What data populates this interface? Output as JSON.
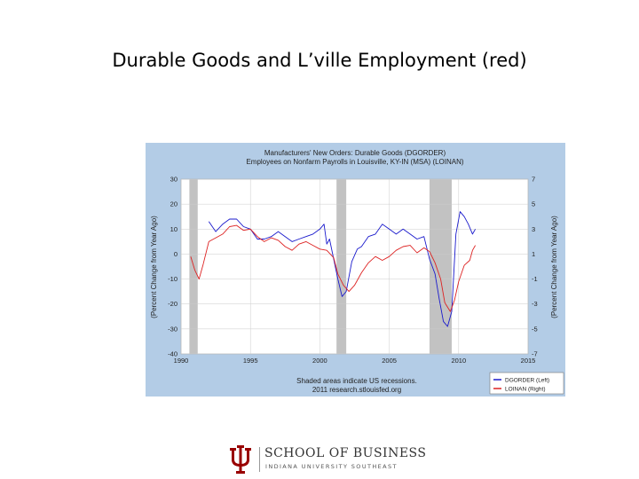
{
  "slide": {
    "title": "Durable Goods and L’ville Employment (red)"
  },
  "logo": {
    "line1": "SCHOOL OF BUSINESS",
    "line2": "INDIANA UNIVERSITY SOUTHEAST",
    "color": "#990000"
  },
  "chart_data": {
    "type": "line",
    "title": "Manufacturers' New Orders: Durable Goods (DGORDER)",
    "subtitle": "Employees on Nonfarm Payrolls in Louisville, KY-IN (MSA) (LOINAN)",
    "xlim": [
      1990,
      2015
    ],
    "x_ticks": [
      "1990",
      "1995",
      "2000",
      "2005",
      "2010",
      "2015"
    ],
    "ylabel": "(Percent Change from Year Ago)",
    "ylim": [
      -40,
      30
    ],
    "y_ticks": [
      "-40",
      "-30",
      "-20",
      "-10",
      "0",
      "10",
      "20",
      "30"
    ],
    "y2label": "(Percent Change from Year Ago)",
    "y2lim": [
      -7,
      7
    ],
    "y2_ticks": [
      "-7",
      "-5",
      "-3",
      "-1",
      "1",
      "3",
      "5",
      "7"
    ],
    "recessions": [
      [
        1990.6,
        1991.2
      ],
      [
        2001.2,
        2001.9
      ],
      [
        2007.9,
        2009.5
      ]
    ],
    "footnote_line1": "Shaded areas indicate US recessions.",
    "footnote_line2": "2011 research.stlouisfed.org",
    "grid": true,
    "legend_position": "bottom-right",
    "colors": {
      "plot_bg": "#ffffff",
      "frame_bg": "#b3cce6",
      "recession": "#c2c2c2",
      "grid": "#cccccc"
    },
    "series": [
      {
        "name": "DGORDER (Left)",
        "axis": "left",
        "color": "#1a1acc",
        "x": [
          1992.0,
          1992.5,
          1993.0,
          1993.5,
          1994.0,
          1994.5,
          1995.0,
          1995.5,
          1996.0,
          1996.5,
          1997.0,
          1997.5,
          1998.0,
          1998.5,
          1999.0,
          1999.5,
          2000.0,
          2000.3,
          2000.5,
          2000.7,
          2001.0,
          2001.3,
          2001.6,
          2001.9,
          2002.3,
          2002.7,
          2003.0,
          2003.5,
          2004.0,
          2004.5,
          2005.0,
          2005.5,
          2006.0,
          2006.5,
          2007.0,
          2007.5,
          2007.9,
          2008.3,
          2008.6,
          2008.9,
          2009.2,
          2009.5,
          2009.8,
          2010.1,
          2010.4,
          2010.7,
          2011.0,
          2011.2
        ],
        "y": [
          13,
          9,
          12,
          14,
          14,
          11,
          10,
          6,
          6,
          7,
          9,
          7,
          5,
          6,
          7,
          8,
          10,
          12,
          4,
          6,
          -2,
          -10,
          -17,
          -15,
          -3,
          2,
          3,
          7,
          8,
          12,
          10,
          8,
          10,
          8,
          6,
          7,
          -2,
          -8,
          -18,
          -27,
          -29,
          -23,
          8,
          17,
          15,
          12,
          8,
          10
        ]
      },
      {
        "name": "LOINAN (Right)",
        "axis": "right",
        "color": "#dd2222",
        "x": [
          1990.7,
          1991.0,
          1991.3,
          1991.6,
          1992.0,
          1992.5,
          1993.0,
          1993.5,
          1994.0,
          1994.5,
          1995.0,
          1995.5,
          1996.0,
          1996.5,
          1997.0,
          1997.5,
          1998.0,
          1998.5,
          1999.0,
          1999.5,
          2000.0,
          2000.5,
          2001.0,
          2001.3,
          2001.7,
          2002.1,
          2002.5,
          2003.0,
          2003.5,
          2004.0,
          2004.5,
          2005.0,
          2005.5,
          2006.0,
          2006.5,
          2007.0,
          2007.5,
          2007.9,
          2008.3,
          2008.7,
          2009.0,
          2009.4,
          2009.7,
          2010.0,
          2010.4,
          2010.8,
          2011.0,
          2011.2
        ],
        "y": [
          0.8,
          -0.3,
          -1.0,
          0.2,
          2.0,
          2.3,
          2.6,
          3.2,
          3.3,
          2.9,
          3.0,
          2.4,
          2.0,
          2.3,
          2.1,
          1.6,
          1.3,
          1.8,
          2.0,
          1.7,
          1.4,
          1.3,
          0.7,
          -0.6,
          -1.5,
          -2.0,
          -1.5,
          -0.5,
          0.3,
          0.8,
          0.5,
          0.8,
          1.3,
          1.6,
          1.7,
          1.1,
          1.5,
          1.2,
          0.3,
          -1.0,
          -2.9,
          -3.6,
          -2.7,
          -1.2,
          0.1,
          0.5,
          1.3,
          1.7
        ]
      }
    ]
  }
}
